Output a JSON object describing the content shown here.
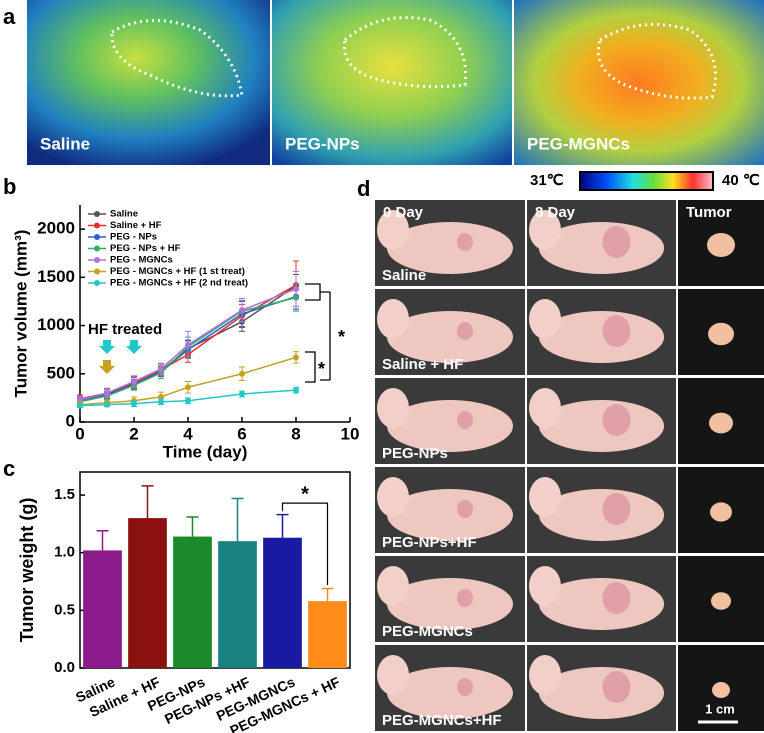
{
  "panel_letters": [
    "a",
    "b",
    "c",
    "d"
  ],
  "thermal": {
    "labels": [
      "Saline",
      "PEG-NPs",
      "PEG-MGNCs"
    ],
    "scale_min": "31℃",
    "scale_max": "40 ℃"
  },
  "photos": {
    "columns": [
      "0 Day",
      "8 Day",
      "Tumor"
    ],
    "rows": [
      "Saline",
      "Saline + HF",
      "PEG-NPs",
      "PEG-NPs+HF",
      "PEG-MGNCs",
      "PEG-MGNCs+HF"
    ],
    "scale_bar": "1 cm"
  },
  "chart_data": [
    {
      "type": "line",
      "x_label": "Time (day)",
      "y_label": "Tumor volume (mm³)",
      "x": [
        0,
        1,
        2,
        3,
        4,
        6,
        8
      ],
      "xlim": [
        0,
        10
      ],
      "xticks": [
        0,
        2,
        4,
        6,
        8,
        10
      ],
      "ylim": [
        0,
        2250
      ],
      "yticks": [
        0,
        500,
        1000,
        1500,
        2000
      ],
      "annotations": [
        "HF treated",
        "*",
        "*"
      ],
      "series": [
        {
          "name": "Saline",
          "color": "#555555",
          "values": [
            230,
            290,
            400,
            530,
            760,
            1040,
            1410
          ],
          "errors": [
            40,
            50,
            60,
            50,
            90,
            100,
            120
          ]
        },
        {
          "name": "Saline + HF",
          "color": "#e8302a",
          "values": [
            240,
            300,
            410,
            540,
            700,
            1100,
            1420
          ],
          "errors": [
            40,
            50,
            60,
            60,
            80,
            120,
            250
          ]
        },
        {
          "name": "PEG - NPs",
          "color": "#2f5fd0",
          "values": [
            220,
            280,
            390,
            520,
            750,
            1120,
            1300
          ],
          "errors": [
            30,
            40,
            50,
            50,
            90,
            130,
            130
          ]
        },
        {
          "name": "PEG - NPs + HF",
          "color": "#2fb060",
          "values": [
            210,
            270,
            380,
            510,
            780,
            1150,
            1290
          ],
          "errors": [
            30,
            40,
            50,
            60,
            100,
            110,
            140
          ]
        },
        {
          "name": "PEG - MGNCs",
          "color": "#b070e0",
          "values": [
            230,
            300,
            420,
            550,
            800,
            1160,
            1380
          ],
          "errors": [
            40,
            50,
            60,
            60,
            140,
            120,
            180
          ]
        },
        {
          "name": "PEG - MGNCs + HF (1 st treat)",
          "color": "#c8a020",
          "values": [
            180,
            200,
            220,
            260,
            360,
            500,
            670
          ],
          "errors": [
            30,
            30,
            40,
            50,
            60,
            70,
            60
          ]
        },
        {
          "name": "PEG - MGNCs + HF (2 nd treat)",
          "color": "#20c8c8",
          "values": [
            170,
            180,
            190,
            210,
            220,
            290,
            330
          ],
          "errors": [
            20,
            20,
            30,
            30,
            30,
            30,
            30
          ]
        }
      ]
    },
    {
      "type": "bar",
      "y_label": "Tumor weight (g)",
      "categories": [
        "Saline",
        "Saline + HF",
        "PEG-NPs",
        "PEG-NPs +HF",
        "PEG-MGNCs",
        "PEG-MGNCs + HF"
      ],
      "values": [
        1.02,
        1.3,
        1.14,
        1.1,
        1.13,
        0.58
      ],
      "errors": [
        0.17,
        0.28,
        0.17,
        0.37,
        0.2,
        0.11
      ],
      "colors": [
        "#8b1a8b",
        "#8b1010",
        "#1a8a2a",
        "#1a8080",
        "#1a1aa0",
        "#ff8c1a"
      ],
      "ylim": [
        0,
        1.7
      ],
      "yticks": [
        {
          "value": 0,
          "label": "0.0"
        },
        {
          "value": 0.5,
          "label": "0.5"
        },
        {
          "value": 1,
          "label": "1.0"
        },
        {
          "value": 1.5,
          "label": "1.5"
        }
      ],
      "annotation": "*"
    }
  ]
}
